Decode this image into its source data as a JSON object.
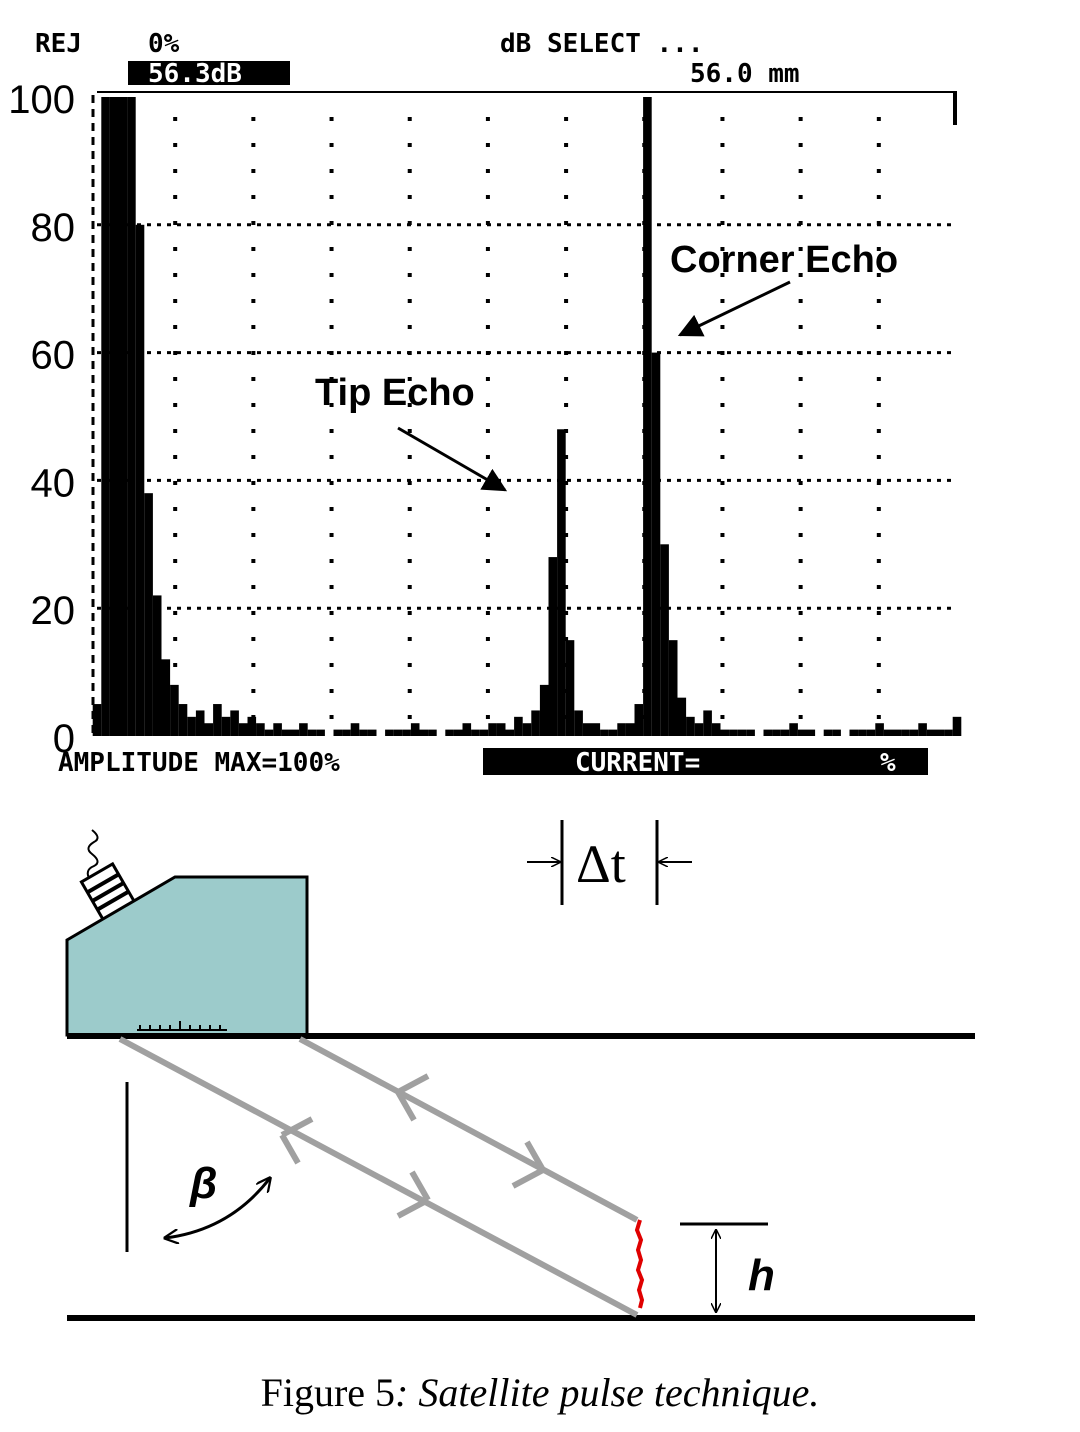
{
  "chart_data": {
    "type": "bar",
    "header": {
      "rej": "REJ",
      "rej_value": "0%",
      "gain": "56.3dB",
      "mode": "dB SELECT ...",
      "range": "56.0 mm"
    },
    "footer": {
      "amplitude_max": "AMPLITUDE MAX=100%",
      "current": "CURRENT=",
      "current_unit": "%"
    },
    "annotations": [
      {
        "text": "Tip Echo"
      },
      {
        "text": "Corner Echo"
      }
    ],
    "x": [
      0,
      1,
      2,
      3,
      4,
      5,
      6,
      7,
      8,
      9,
      10,
      11,
      12,
      13,
      14,
      15,
      16,
      17,
      18,
      19,
      20,
      21,
      22,
      23,
      24,
      25,
      26,
      27,
      28,
      29,
      30,
      31,
      32,
      33,
      34,
      35,
      36,
      37,
      38,
      39,
      40,
      41,
      42,
      43,
      44,
      45,
      46,
      47,
      48,
      49,
      50,
      51,
      52,
      53,
      54,
      55,
      56,
      57,
      58,
      59,
      60,
      61,
      62,
      63,
      64,
      65,
      66,
      67,
      68,
      69,
      70,
      71,
      72,
      73,
      74,
      75,
      76,
      77,
      78,
      79,
      80,
      81,
      82,
      83,
      84,
      85,
      86,
      87,
      88,
      89,
      90,
      91,
      92,
      93,
      94,
      95,
      96,
      97,
      98,
      99,
      100
    ],
    "values": [
      5,
      100,
      100,
      100,
      100,
      80,
      38,
      22,
      12,
      8,
      5,
      3,
      4,
      2,
      5,
      3,
      4,
      2,
      3,
      2,
      1,
      2,
      1,
      1,
      2,
      1,
      1,
      0,
      1,
      1,
      2,
      1,
      1,
      0,
      1,
      1,
      1,
      2,
      1,
      1,
      0,
      1,
      1,
      2,
      1,
      1,
      2,
      2,
      1,
      3,
      2,
      4,
      8,
      28,
      48,
      15,
      4,
      2,
      2,
      1,
      1,
      2,
      2,
      5,
      100,
      60,
      30,
      15,
      6,
      3,
      2,
      4,
      2,
      1,
      1,
      1,
      1,
      0,
      1,
      1,
      1,
      2,
      1,
      1,
      0,
      1,
      1,
      0,
      1,
      1,
      1,
      2,
      1,
      1,
      1,
      1,
      2,
      1,
      1,
      1,
      3
    ],
    "color": "#000000",
    "xlim": [
      0,
      100
    ],
    "ylim": [
      0,
      100
    ],
    "yticks": [
      0,
      20,
      40,
      60,
      80,
      100
    ],
    "grid": true
  },
  "diagram": {
    "delta_t": "Δt",
    "beta": "β",
    "h": "h"
  },
  "caption": {
    "label": "Figure 5",
    "text": ": Satellite pulse technique."
  }
}
